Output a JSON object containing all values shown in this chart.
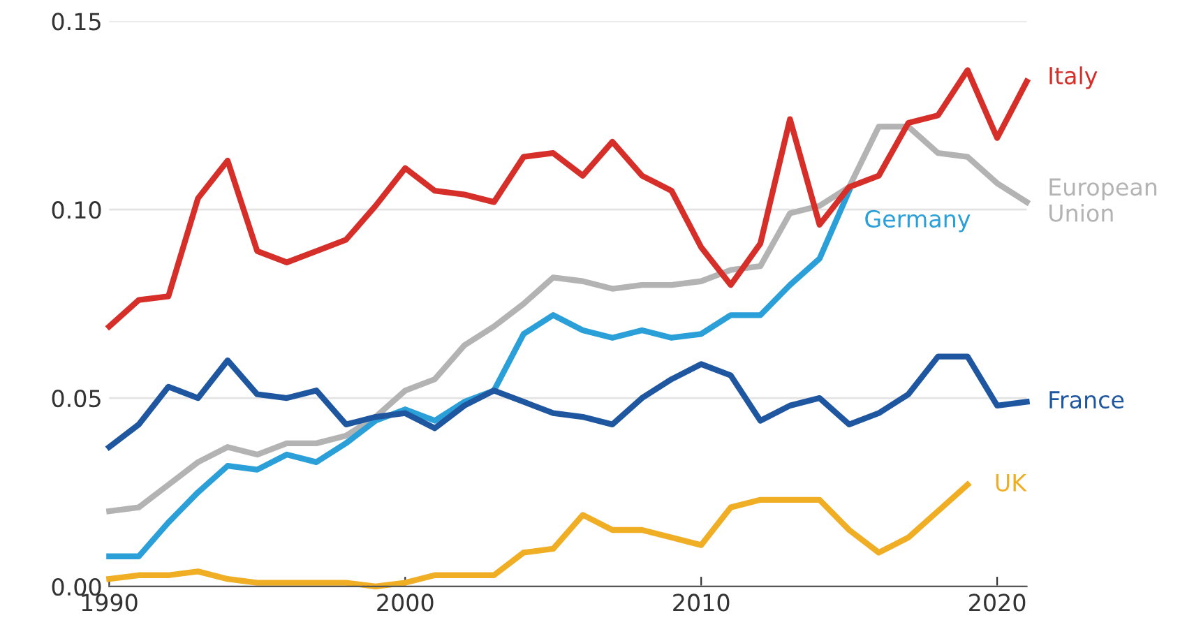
{
  "chart_data": {
    "type": "line",
    "xlim": [
      1990,
      2021
    ],
    "xticks": [
      1990,
      2000,
      2010,
      2020
    ],
    "ylim": [
      0,
      0.15
    ],
    "yticks": [
      {
        "value": 0,
        "label": "0.00"
      },
      {
        "value": 0.05,
        "label": "0.05"
      },
      {
        "value": 0.1,
        "label": "0.10"
      },
      {
        "value": 0.15,
        "label": "0.15"
      }
    ],
    "grid": "y",
    "legend": false,
    "marker": "none",
    "line_style": "solid",
    "x": [
      1990,
      1991,
      1992,
      1993,
      1994,
      1995,
      1996,
      1997,
      1998,
      1999,
      2000,
      2001,
      2002,
      2003,
      2004,
      2005,
      2006,
      2007,
      2008,
      2009,
      2010,
      2011,
      2012,
      2013,
      2014,
      2015,
      2016,
      2017,
      2018,
      2019,
      2020,
      2021
    ],
    "series": [
      {
        "name": "European Union",
        "color": "#b3b3b3",
        "values": [
          0.02,
          0.021,
          0.027,
          0.033,
          0.037,
          0.035,
          0.038,
          0.038,
          0.04,
          0.045,
          0.052,
          0.055,
          0.064,
          0.069,
          0.075,
          0.082,
          0.081,
          0.079,
          0.08,
          0.08,
          0.081,
          0.084,
          0.085,
          0.099,
          0.101,
          0.106,
          0.122,
          0.122,
          0.115,
          0.114,
          0.107,
          0.102
        ]
      },
      {
        "name": "Germany",
        "color": "#2a9fd8",
        "values": [
          0.008,
          0.008,
          0.017,
          0.025,
          0.032,
          0.031,
          0.035,
          0.033,
          0.038,
          0.044,
          0.047,
          0.044,
          0.049,
          0.052,
          0.067,
          0.072,
          0.068,
          0.066,
          0.068,
          0.066,
          0.067,
          0.072,
          0.072,
          0.08,
          0.087,
          0.105,
          null,
          null,
          null,
          null,
          null,
          null
        ]
      },
      {
        "name": "France",
        "color": "#1f56a0",
        "values": [
          0.037,
          0.043,
          0.053,
          0.05,
          0.06,
          0.051,
          0.05,
          0.052,
          0.043,
          0.045,
          0.046,
          0.042,
          0.048,
          0.052,
          0.049,
          0.046,
          0.045,
          0.043,
          0.05,
          0.055,
          0.059,
          0.056,
          0.044,
          0.048,
          0.05,
          0.043,
          0.046,
          0.051,
          0.061,
          0.061,
          0.048,
          0.049
        ]
      },
      {
        "name": "UK",
        "color": "#f0ae25",
        "values": [
          0.002,
          0.003,
          0.003,
          0.004,
          0.002,
          0.001,
          0.001,
          0.001,
          0.001,
          0.0,
          0.001,
          0.003,
          0.003,
          0.003,
          0.009,
          0.01,
          0.019,
          0.015,
          0.015,
          0.013,
          0.011,
          0.021,
          0.023,
          0.023,
          0.023,
          0.015,
          0.009,
          0.013,
          0.02,
          0.027,
          null,
          null
        ]
      },
      {
        "name": "Italy",
        "color": "#d62f2a",
        "values": [
          0.069,
          0.076,
          0.077,
          0.103,
          0.113,
          0.089,
          0.086,
          0.089,
          0.092,
          0.101,
          0.111,
          0.105,
          0.104,
          0.102,
          0.114,
          0.115,
          0.109,
          0.118,
          0.109,
          0.105,
          0.09,
          0.08,
          0.091,
          0.124,
          0.096,
          0.106,
          0.109,
          0.123,
          0.125,
          0.137,
          0.119,
          0.134
        ]
      }
    ]
  }
}
